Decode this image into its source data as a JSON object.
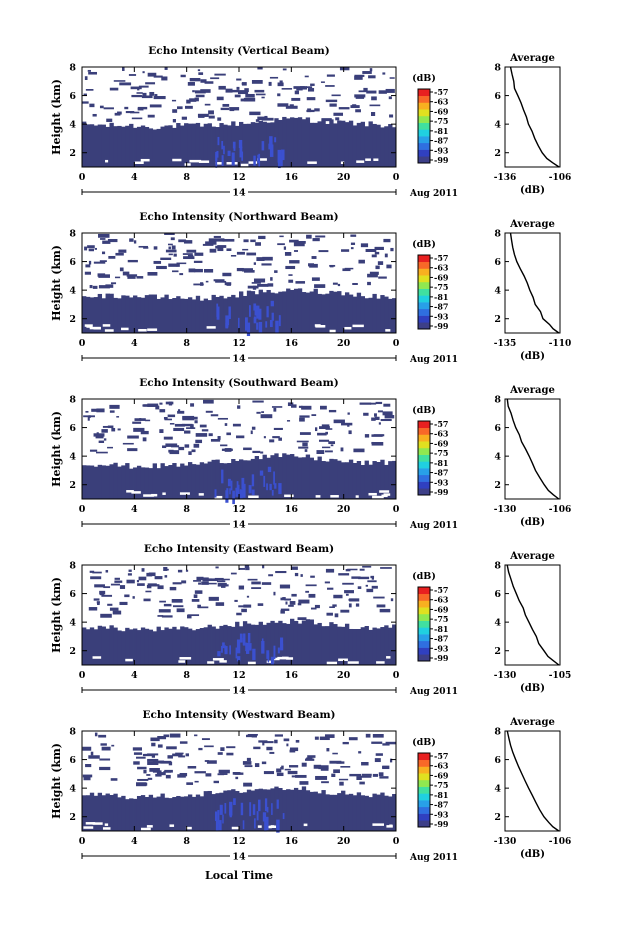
{
  "figure": {
    "xlabel": "Local Time",
    "date_label": "Aug 2011",
    "day_label": "14",
    "colorbar_label": "(dB)",
    "average_title": "Average",
    "average_xlabel": "(dB)",
    "ylabel": "Height (km)"
  },
  "colors": {
    "echo": "#3a3f7a",
    "echo_strong": "#3b50d0",
    "colormap": [
      "#3d3f88",
      "#3040c0",
      "#2f6fe0",
      "#28a0e8",
      "#20d0e0",
      "#40e0a0",
      "#90e850",
      "#e0e020",
      "#f8b020",
      "#f86828",
      "#e82020"
    ]
  },
  "chart_data": [
    {
      "type": "heatmap",
      "title": "Echo Intensity (Vertical Beam)",
      "x_ticks": [
        "0",
        "4",
        "8",
        "12",
        "16",
        "20",
        "0"
      ],
      "xlim": [
        0,
        24
      ],
      "y_ticks": [
        "2",
        "4",
        "6",
        "8"
      ],
      "ylim": [
        1,
        8
      ],
      "colorbar_ticks": [
        "-57",
        "-63",
        "-69",
        "-75",
        "-81",
        "-87",
        "-93",
        "-99"
      ],
      "echo_top_km": [
        4.0,
        3.9,
        3.9,
        3.8,
        3.9,
        3.9,
        4.0,
        4.1,
        4.3,
        4.4,
        4.2,
        4.1,
        4.0,
        3.9
      ],
      "average": {
        "x_ticks": [
          "-136",
          "-106"
        ],
        "xlim": [
          -136,
          -106
        ],
        "y_ticks": [
          "2",
          "4",
          "6",
          "8"
        ],
        "ylim": [
          1,
          8
        ],
        "profile": [
          [
            -106.5,
            1.0
          ],
          [
            -110,
            1.3
          ],
          [
            -113,
            1.6
          ],
          [
            -116,
            2.0
          ],
          [
            -118,
            2.5
          ],
          [
            -120,
            3.0
          ],
          [
            -121,
            3.5
          ],
          [
            -123,
            4.0
          ],
          [
            -124,
            4.5
          ],
          [
            -126,
            5.0
          ],
          [
            -127.5,
            5.5
          ],
          [
            -129,
            6.0
          ],
          [
            -130.5,
            6.5
          ],
          [
            -131.5,
            7.0
          ],
          [
            -132.5,
            7.5
          ],
          [
            -133,
            8.0
          ]
        ]
      }
    },
    {
      "type": "heatmap",
      "title": "Echo Intensity (Northward Beam)",
      "x_ticks": [
        "0",
        "4",
        "8",
        "12",
        "16",
        "20",
        "0"
      ],
      "xlim": [
        0,
        24
      ],
      "y_ticks": [
        "2",
        "4",
        "6",
        "8"
      ],
      "ylim": [
        1,
        8
      ],
      "colorbar_ticks": [
        "-57",
        "-63",
        "-69",
        "-75",
        "-81",
        "-87",
        "-93",
        "-99"
      ],
      "echo_top_km": [
        3.7,
        3.6,
        3.6,
        3.5,
        3.5,
        3.4,
        3.6,
        3.8,
        3.9,
        4.0,
        3.9,
        3.8,
        3.6,
        3.5
      ],
      "average": {
        "x_ticks": [
          "-135",
          "-110"
        ],
        "xlim": [
          -135,
          -110
        ],
        "y_ticks": [
          "2",
          "4",
          "6",
          "8"
        ],
        "ylim": [
          1,
          8
        ],
        "profile": [
          [
            -110.5,
            1.0
          ],
          [
            -113,
            1.3
          ],
          [
            -115,
            1.6
          ],
          [
            -117.5,
            2.0
          ],
          [
            -119,
            2.5
          ],
          [
            -121,
            3.0
          ],
          [
            -122,
            3.5
          ],
          [
            -123.5,
            4.0
          ],
          [
            -125,
            4.5
          ],
          [
            -126.5,
            5.0
          ],
          [
            -128,
            5.5
          ],
          [
            -129.5,
            6.0
          ],
          [
            -130.5,
            6.5
          ],
          [
            -131.5,
            7.0
          ],
          [
            -132,
            7.5
          ],
          [
            -132.5,
            8.0
          ]
        ]
      }
    },
    {
      "type": "heatmap",
      "title": "Echo Intensity (Southward Beam)",
      "x_ticks": [
        "0",
        "4",
        "8",
        "12",
        "16",
        "20",
        "0"
      ],
      "xlim": [
        0,
        24
      ],
      "y_ticks": [
        "2",
        "4",
        "6",
        "8"
      ],
      "ylim": [
        1,
        8
      ],
      "colorbar_ticks": [
        "-57",
        "-63",
        "-69",
        "-75",
        "-81",
        "-87",
        "-93",
        "-99"
      ],
      "echo_top_km": [
        3.5,
        3.4,
        3.3,
        3.3,
        3.4,
        3.5,
        3.7,
        3.9,
        4.0,
        4.0,
        3.8,
        3.6,
        3.5,
        3.6
      ],
      "average": {
        "x_ticks": [
          "-130",
          "-106"
        ],
        "xlim": [
          -130,
          -106
        ],
        "y_ticks": [
          "2",
          "4",
          "6",
          "8"
        ],
        "ylim": [
          1,
          8
        ],
        "profile": [
          [
            -106.5,
            1.0
          ],
          [
            -109,
            1.3
          ],
          [
            -111,
            1.6
          ],
          [
            -113,
            2.0
          ],
          [
            -115,
            2.5
          ],
          [
            -116.5,
            3.0
          ],
          [
            -118,
            3.5
          ],
          [
            -119.5,
            4.0
          ],
          [
            -121,
            4.5
          ],
          [
            -122.5,
            5.0
          ],
          [
            -124,
            5.5
          ],
          [
            -125.5,
            6.0
          ],
          [
            -126.5,
            6.5
          ],
          [
            -127.5,
            7.0
          ],
          [
            -128.5,
            7.5
          ],
          [
            -129,
            8.0
          ]
        ]
      }
    },
    {
      "type": "heatmap",
      "title": "Echo Intensity (Eastward Beam)",
      "x_ticks": [
        "0",
        "4",
        "8",
        "12",
        "16",
        "20",
        "0"
      ],
      "xlim": [
        0,
        24
      ],
      "y_ticks": [
        "2",
        "4",
        "6",
        "8"
      ],
      "ylim": [
        1,
        8
      ],
      "colorbar_ticks": [
        "-57",
        "-63",
        "-69",
        "-75",
        "-81",
        "-87",
        "-93",
        "-99"
      ],
      "echo_top_km": [
        3.7,
        3.6,
        3.5,
        3.5,
        3.5,
        3.6,
        3.8,
        3.9,
        4.0,
        4.1,
        3.9,
        3.7,
        3.6,
        3.7
      ],
      "average": {
        "x_ticks": [
          "-130",
          "-105"
        ],
        "xlim": [
          -130,
          -105
        ],
        "y_ticks": [
          "2",
          "4",
          "6",
          "8"
        ],
        "ylim": [
          1,
          8
        ],
        "profile": [
          [
            -105.5,
            1.0
          ],
          [
            -108,
            1.3
          ],
          [
            -110.5,
            1.6
          ],
          [
            -112.5,
            2.0
          ],
          [
            -114.5,
            2.5
          ],
          [
            -116,
            3.0
          ],
          [
            -117.5,
            3.5
          ],
          [
            -119,
            4.0
          ],
          [
            -120.5,
            4.5
          ],
          [
            -122,
            5.0
          ],
          [
            -123.5,
            5.5
          ],
          [
            -125,
            6.0
          ],
          [
            -126.5,
            6.5
          ],
          [
            -127.5,
            7.0
          ],
          [
            -128.5,
            7.5
          ],
          [
            -129,
            8.0
          ]
        ]
      }
    },
    {
      "type": "heatmap",
      "title": "Echo Intensity (Westward Beam)",
      "x_ticks": [
        "0",
        "4",
        "8",
        "12",
        "16",
        "20",
        "0"
      ],
      "xlim": [
        0,
        24
      ],
      "y_ticks": [
        "2",
        "4",
        "6",
        "8"
      ],
      "ylim": [
        1,
        8
      ],
      "colorbar_ticks": [
        "-57",
        "-63",
        "-69",
        "-75",
        "-81",
        "-87",
        "-93",
        "-99"
      ],
      "echo_top_km": [
        3.6,
        3.5,
        3.4,
        3.4,
        3.5,
        3.6,
        3.7,
        3.9,
        4.0,
        4.0,
        3.8,
        3.6,
        3.5,
        3.5
      ],
      "average": {
        "x_ticks": [
          "-130",
          "-106"
        ],
        "xlim": [
          -130,
          -106
        ],
        "y_ticks": [
          "2",
          "4",
          "6",
          "8"
        ],
        "ylim": [
          1,
          8
        ],
        "profile": [
          [
            -106.5,
            1.0
          ],
          [
            -109,
            1.3
          ],
          [
            -111,
            1.6
          ],
          [
            -113,
            2.0
          ],
          [
            -115,
            2.5
          ],
          [
            -116.5,
            3.0
          ],
          [
            -118,
            3.5
          ],
          [
            -119.5,
            4.0
          ],
          [
            -121,
            4.5
          ],
          [
            -122.5,
            5.0
          ],
          [
            -124,
            5.5
          ],
          [
            -125.5,
            6.0
          ],
          [
            -126.5,
            6.5
          ],
          [
            -127.5,
            7.0
          ],
          [
            -128.5,
            7.5
          ],
          [
            -129,
            8.0
          ]
        ]
      }
    }
  ]
}
